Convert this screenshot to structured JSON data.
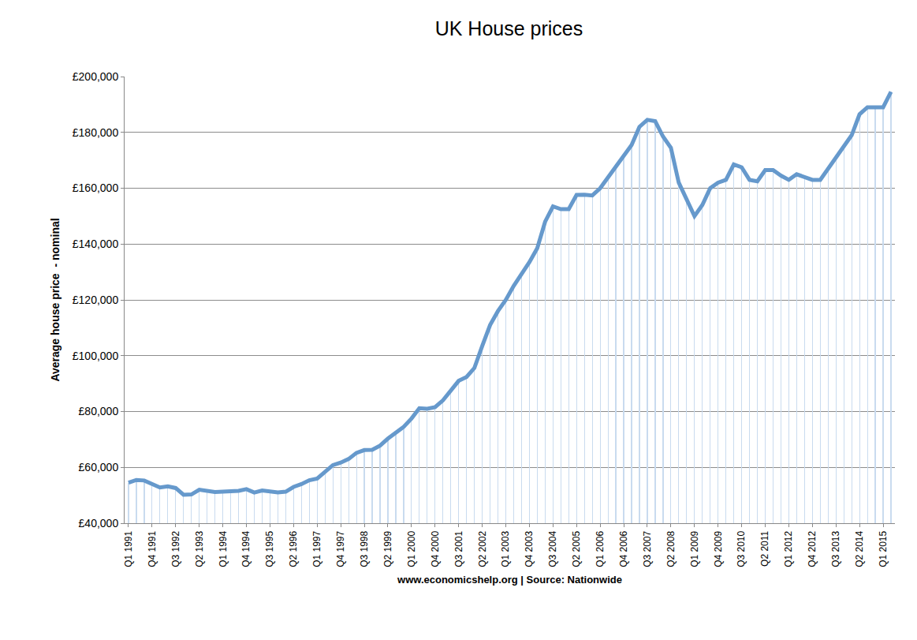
{
  "chart_data": {
    "type": "line",
    "title": "UK House prices",
    "x_label": "www.economicshelp.org | Source: Nationwide",
    "y_label": "Average house price  - nominal",
    "color": "#6699cc",
    "grid": true,
    "categories": [
      "Q1 1991",
      null,
      null,
      "Q4 1991",
      null,
      null,
      "Q3 1992",
      null,
      null,
      "Q2 1993",
      null,
      null,
      "Q1 1994",
      null,
      null,
      "Q4 1994",
      null,
      null,
      "Q3 1995",
      null,
      null,
      "Q2 1996",
      null,
      null,
      "Q1 1997",
      null,
      null,
      "Q4 1997",
      null,
      null,
      "Q3 1998",
      null,
      null,
      "Q2 1999",
      null,
      null,
      "Q1 2000",
      null,
      null,
      "Q4 2000",
      null,
      null,
      "Q3 2001",
      null,
      null,
      "Q2 2002",
      null,
      null,
      "Q1 2003",
      null,
      null,
      "Q4 2003",
      null,
      null,
      "Q3 2004",
      null,
      null,
      "Q2 2005",
      null,
      null,
      "Q1 2006",
      null,
      null,
      "Q4 2006",
      null,
      null,
      "Q3 2007",
      null,
      null,
      "Q2 2008",
      null,
      null,
      "Q1 2009",
      null,
      null,
      "Q4 2009",
      null,
      null,
      "Q3 2010",
      null,
      null,
      "Q2 2011",
      null,
      null,
      "Q1 2012",
      null,
      null,
      "Q4 2012",
      null,
      null,
      "Q3 2013",
      null,
      null,
      "Q2 2014",
      null,
      null,
      "Q1 2015",
      null
    ],
    "values": [
      54500,
      55500,
      55300,
      54000,
      52800,
      53200,
      52600,
      50200,
      50300,
      52000,
      51700,
      51200,
      51300,
      51300,
      51600,
      52200,
      51000,
      51700,
      51400,
      51000,
      51300,
      53000,
      54000,
      55400,
      56000,
      58500,
      60800,
      61700,
      63000,
      65200,
      66200,
      66300,
      67800,
      70300,
      72500,
      74500,
      77500,
      81200,
      81000,
      81600,
      84000,
      87500,
      91000,
      92400,
      95600,
      103500,
      111000,
      116000,
      120000,
      125000,
      129000,
      133500,
      138500,
      148000,
      153500,
      152500,
      152500,
      157600,
      157700,
      157400,
      160000,
      164000,
      168000,
      172000,
      175500,
      182000,
      184500,
      184000,
      178500,
      174500,
      162000,
      156000,
      150000,
      154000,
      160000,
      162000,
      163000,
      168500,
      167500,
      163000,
      162500,
      166500,
      166500,
      164500,
      163000,
      165000,
      164000,
      163000,
      163000,
      167000,
      171000,
      175000,
      179000,
      186500,
      189000,
      189000,
      189000,
      194500
    ],
    "ylim": [
      40000,
      200000
    ],
    "yticks": [
      {
        "value": 40000,
        "label": "£40,000"
      },
      {
        "value": 60000,
        "label": "£60,000"
      },
      {
        "value": 80000,
        "label": "£80,000"
      },
      {
        "value": 100000,
        "label": "£100,000"
      },
      {
        "value": 120000,
        "label": "£120,000"
      },
      {
        "value": 140000,
        "label": "£140,000"
      },
      {
        "value": 160000,
        "label": "£160,000"
      },
      {
        "value": 180000,
        "label": "£180,000"
      },
      {
        "value": 200000,
        "label": "£200,000"
      }
    ]
  }
}
